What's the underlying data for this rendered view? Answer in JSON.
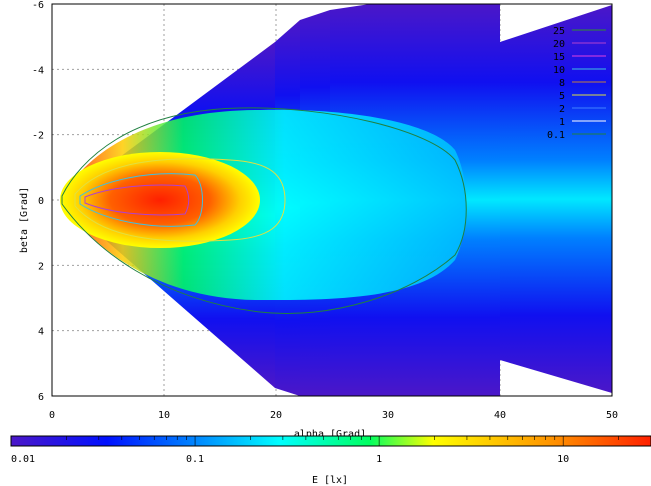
{
  "chart_data": {
    "type": "heatmap",
    "title": "",
    "xlabel": "alpha [Grad]",
    "ylabel": "beta [Grad]",
    "xlim": [
      0,
      50
    ],
    "ylim": [
      6,
      -6
    ],
    "xticks": [
      "0",
      "10",
      "20",
      "30",
      "40",
      "50"
    ],
    "yticks": [
      "-6",
      "-4",
      "-2",
      "0",
      "2",
      "4",
      "6"
    ],
    "grid": true,
    "colorbar": {
      "label": "E [lx]",
      "scale": "log",
      "range": [
        0.01,
        30
      ],
      "ticks": [
        "0.01",
        "0.1",
        "1",
        "10"
      ],
      "colors": [
        "#4b17c8",
        "#0010ff",
        "#00ffff",
        "#00ff40",
        "#ffff00",
        "#ff2000"
      ]
    },
    "contour_levels": [
      {
        "label": "25",
        "color": "#2f8f2f"
      },
      {
        "label": "20",
        "color": "#b040d0"
      },
      {
        "label": "15",
        "color": "#e040e0"
      },
      {
        "label": "10",
        "color": "#40c0e0"
      },
      {
        "label": "8",
        "color": "#c08040"
      },
      {
        "label": "5",
        "color": "#e0e040"
      },
      {
        "label": "2",
        "color": "#4080ff"
      },
      {
        "label": "1",
        "color": "#ffffff"
      },
      {
        "label": "0.1",
        "color": "#208040"
      }
    ],
    "wedge_segments_x": [
      0,
      20,
      22,
      25,
      28.5,
      33,
      40,
      50
    ]
  }
}
